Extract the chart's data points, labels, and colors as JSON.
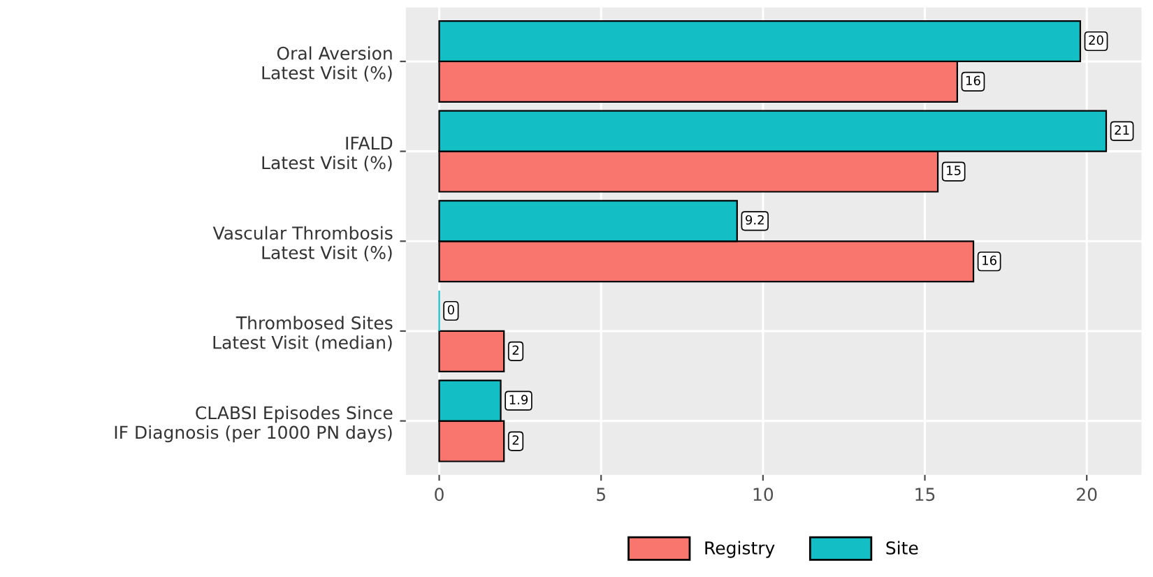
{
  "chart_data": {
    "type": "bar",
    "orientation": "horizontal",
    "categories": [
      "Oral Aversion\nLatest Visit (%)",
      "IFALD\nLatest Visit (%)",
      "Vascular Thrombosis\nLatest Visit (%)",
      "Thrombosed Sites\nLatest Visit (median)",
      "CLABSI Episodes Since\nIF Diagnosis (per 1000 PN days)"
    ],
    "series": [
      {
        "name": "Registry",
        "color": "#f8766d",
        "values": [
          16.0,
          15.4,
          16.5,
          2.0,
          2.0
        ],
        "value_labels": [
          "16",
          "15",
          "16",
          "2",
          "2"
        ]
      },
      {
        "name": "Site",
        "color": "#13bfc4",
        "values": [
          19.8,
          20.6,
          9.2,
          0,
          1.9
        ],
        "value_labels": [
          "20",
          "21",
          "9.2",
          "0",
          "1.9"
        ]
      }
    ],
    "xlim": [
      -1.03,
      21.69
    ],
    "xticks": [
      0,
      5,
      10,
      15,
      20
    ],
    "grid": true,
    "legend": "bottom"
  }
}
